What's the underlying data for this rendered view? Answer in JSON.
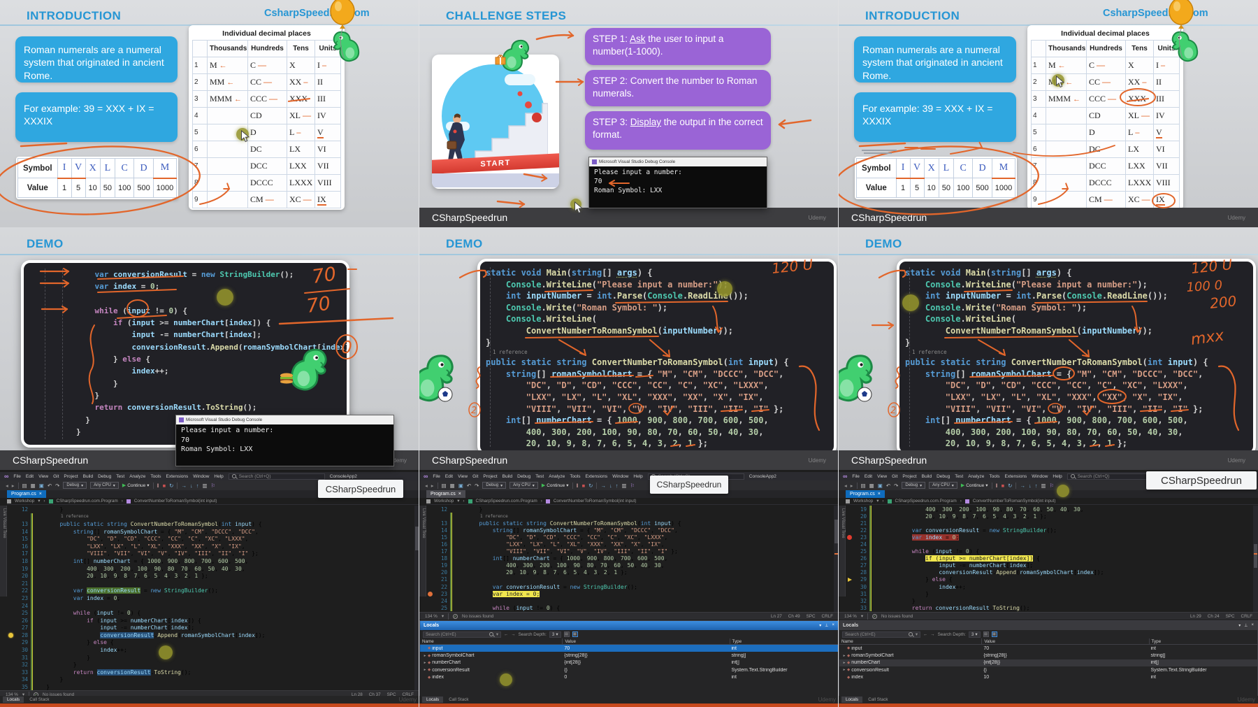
{
  "colors": {
    "accent_blue": "#2796d4",
    "box_blue": "#2fa7e0",
    "box_purple": "#9a64d6",
    "annotation_orange": "#E2662B",
    "vs_bg": "#1e1e1e",
    "tab_blue": "#0f6cbd",
    "selection_blue": "#1c6ebe",
    "bottom_bar_orange": "#c7491d"
  },
  "intro": {
    "title": "INTRODUCTION",
    "watermark": "CsharpSpeedrun.com",
    "box1": "Roman numerals are a numeral system that originated in ancient Rome.",
    "box2": "For example: 39 = XXX + IX = XXXIX",
    "symbol_table": {
      "header_label": "Symbol",
      "value_label": "Value",
      "symbols": [
        "I",
        "V",
        "X",
        "L",
        "C",
        "D",
        "M"
      ],
      "values": [
        "1",
        "5",
        "10",
        "50",
        "100",
        "500",
        "1000"
      ],
      "sym_underline": [
        0,
        1,
        6
      ]
    },
    "decimal_table": {
      "title": "Individual decimal places",
      "headers": [
        "Thousands",
        "Hundreds",
        "Tens",
        "Units"
      ],
      "rows": [
        [
          "1",
          "M",
          "C",
          "X",
          "I"
        ],
        [
          "2",
          "MM",
          "CC",
          "XX",
          "II"
        ],
        [
          "3",
          "MMM",
          "CCC",
          "XXX",
          "III"
        ],
        [
          "4",
          "",
          "CD",
          "XL",
          "IV"
        ],
        [
          "5",
          "",
          "D",
          "L",
          "V"
        ],
        [
          "6",
          "",
          "DC",
          "LX",
          "VI"
        ],
        [
          "7",
          "",
          "DCC",
          "LXX",
          "VII"
        ],
        [
          "8",
          "",
          "DCCC",
          "LXXX",
          "VIII"
        ],
        [
          "9",
          "",
          "CM",
          "XC",
          "IX"
        ]
      ],
      "cell_ann": {
        "0-1": "arrow",
        "0-2": "dash",
        "0-4": "dash2",
        "1-1": "arrow",
        "1-2": "dash",
        "1-3": "dash2",
        "2-1": "arrow",
        "2-2": "dash",
        "2-3": "strike",
        "3-3": "dash",
        "4-3": "dash2",
        "4-4": "uline",
        "8-2": "dash",
        "8-3": "dash",
        "8-4": "uline"
      }
    }
  },
  "challenge": {
    "title": "CHALLENGE STEPS",
    "steps": [
      {
        "pre": "STEP 1: ",
        "u": "Ask",
        "post": " the user to input a number(1-1000)."
      },
      {
        "pre": "STEP 2: ",
        "u": "",
        "post": "Convert the number to Roman numerals."
      },
      {
        "pre": "STEP 3: ",
        "u": "Display",
        "post": " the output in the correct format."
      }
    ],
    "start_label": "START"
  },
  "console": {
    "title": "Microsoft Visual Studio Debug Console",
    "lines": [
      "Please input a number:",
      "70",
      "Roman Symbol: LXX"
    ]
  },
  "demo": {
    "title": "DEMO"
  },
  "annotations": {
    "demo1": [
      "70",
      "70",
      "0"
    ],
    "demo2": [
      "120 U"
    ],
    "demo3": [
      "120 U",
      "100 0",
      "200",
      "mxx"
    ]
  },
  "code": {
    "demo1": [
      "    var conversionResult = new StringBuilder();",
      "    var index = 0;",
      "",
      "    while (input != 0) {",
      "        if (input >= numberChart[index]) {",
      "            input -= numberChart[index];",
      "            conversionResult.Append(romanSymbolChart[index]);",
      "        } else {",
      "            index++;",
      "        }",
      "    }",
      "    return conversionResult.ToString();",
      "  }",
      "}"
    ],
    "demo2": [
      "static void Main(string[] args) {",
      "    Console.WriteLine(\"Please input a number:\");",
      "    int inputNumber = int.Parse(Console.ReadLine());",
      "    Console.Write(\"Roman Symbol: \");",
      "    Console.WriteLine(",
      "        ConvertNumberToRomanSymbol(inputNumber));",
      "}",
      "public static string ConvertNumberToRomanSymbol(int input) {",
      "    string[] romanSymbolChart = { \"M\", \"CM\", \"DCCC\", \"DCC\",",
      "        \"DC\", \"D\", \"CD\", \"CCC\", \"CC\", \"C\", \"XC\", \"LXXX\",",
      "        \"LXX\", \"LX\", \"L\", \"XL\", \"XXX\", \"XX\", \"X\", \"IX\",",
      "        \"VIII\", \"VII\", \"VI\", \"V\", \"IV\", \"III\", \"II\", \"I\" };",
      "    int[] numberChart = { 1000, 900, 800, 700, 600, 500,",
      "        400, 300, 200, 100, 90, 80, 70, 60, 50, 40, 30,",
      "        20, 10, 9, 8, 7, 6, 5, 4, 3, 2, 1 };"
    ],
    "demo2_ref_after": 6,
    "vs_start": 12,
    "vs": [
      "        }",
      "        public static string ConvertNumberToRomanSymbol(int input) {",
      "            string[] romanSymbolChart = { \"M\", \"CM\", \"DCCC\", \"DCC\",",
      "                \"DC\", \"D\", \"CD\", \"CCC\", \"CC\", \"C\", \"XC\", \"LXXX\",",
      "                \"LXX\", \"LX\", \"L\", \"XL\", \"XXX\", \"XX\", \"X\", \"IX\",",
      "                \"VIII\", \"VII\", \"VI\", \"V\", \"IV\", \"III\", \"II\", \"I\" };",
      "            int[] numberChart = { 1000, 900, 800, 700, 600, 500,",
      "                400, 300, 200, 100, 90, 80, 70, 60, 50, 40, 30,",
      "                20, 10, 9, 8, 7, 6, 5, 4, 3, 2, 1 };",
      "",
      "            var conversionResult = new StringBuilder();",
      "            var index = 0;",
      "",
      "            while (input != 0) {",
      "                if (input >= numberChart[index]) {",
      "                    input -= numberChart[index];",
      "                    conversionResult.Append(romanSymbolChart[index]);",
      "                } else {",
      "                    index++;",
      "                }",
      "            }",
      "            return conversionResult.ToString();",
      "        }",
      "    }"
    ]
  },
  "vs": {
    "menu": [
      "File",
      "Edit",
      "View",
      "Git",
      "Project",
      "Build",
      "Debug",
      "Test",
      "Analyze",
      "Tools",
      "Extensions",
      "Window",
      "Help"
    ],
    "search_placeholder": "Search (Ctrl+Q)",
    "project_name": "ConsoleApp2",
    "overlay_brand": "CSharpSpeedrun",
    "toolbar": {
      "config": "Debug",
      "platform": "Any CPU",
      "run": "Continue"
    },
    "tab": "Program.cs",
    "breadcrumb": [
      "Workshop",
      "CSharpSpeedrun.com.Program",
      "ConvertNumberToRomanSymbol(int input)"
    ],
    "side_tab": "Live Visual Tree",
    "ref_label": "1 reference",
    "zoom": "134 %",
    "issues": "No issues found",
    "spc": "SPC",
    "eol": "CRLF",
    "status": {
      "col1": {
        "ln": "Ln 28",
        "ch": "Ch 37"
      },
      "col2": {
        "ln": "Ln 27",
        "ch": "Ch 49"
      },
      "col3": {
        "ln": "Ln 29",
        "ch": "Ch 24"
      }
    },
    "decors": {
      "col1": [
        {
          "line": 22,
          "word": "conversionResult",
          "style": "sel-green"
        },
        {
          "line": 28,
          "word": "conversionResult",
          "style": "sel-blue",
          "gutter": "bulb"
        },
        {
          "line": 33,
          "word": "conversionResult",
          "style": "sel-blue"
        }
      ],
      "col2": [
        {
          "line": 23,
          "word": "var index = 0;",
          "style": "sel-hlyellow",
          "gutter": "bp-orange"
        }
      ],
      "col3": [
        {
          "line": 23,
          "word": "var index = 0;",
          "style": "sel-hlred",
          "gutter": "bp-red"
        },
        {
          "line": 26,
          "word": "if (input >= numberChart[index])",
          "style": "sel-hlyellow"
        },
        {
          "line": 29,
          "gutter": "arrow"
        }
      ]
    },
    "bottom_tabs": [
      "Locals",
      "Call Stack"
    ]
  },
  "locals": {
    "title": "Locals",
    "search_placeholder": "Search (Ctrl+E)",
    "depth_label": "Search Depth:",
    "depth_value": "3",
    "columns": [
      "Name",
      "Value",
      "Type"
    ],
    "col2": {
      "selected": 0,
      "rows": [
        [
          "input",
          "70",
          "int"
        ],
        [
          "romanSymbolChart",
          "{string[28]}",
          "string[]"
        ],
        [
          "numberChart",
          "{int[28]}",
          "int[]"
        ],
        [
          "conversionResult",
          "{}",
          "System.Text.StringBuilder"
        ],
        [
          "index",
          "0",
          "int"
        ]
      ]
    },
    "col3": {
      "soft": 2,
      "rows": [
        [
          "input",
          "70",
          "int"
        ],
        [
          "romanSymbolChart",
          "{string[28]}",
          "string[]"
        ],
        [
          "numberChart",
          "{int[28]}",
          "int[]"
        ],
        [
          "conversionResult",
          "{}",
          "System.Text.StringBuilder"
        ],
        [
          "index",
          "10",
          "int"
        ]
      ]
    }
  },
  "footer": {
    "brand": "CSharpSpeedrun",
    "watermark": "Udemy"
  }
}
